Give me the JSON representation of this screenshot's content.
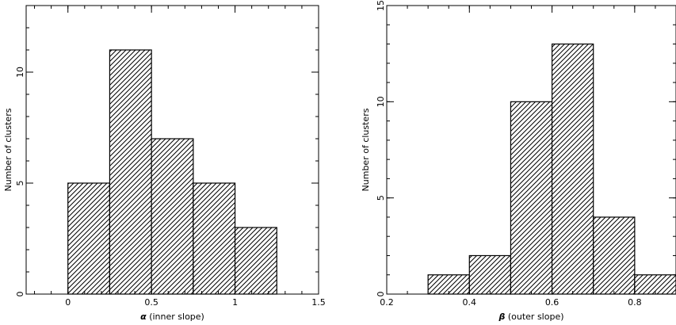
{
  "chart_data": [
    {
      "type": "bar",
      "xlabel_symbol": "α",
      "xlabel_text": " (inner slope)",
      "ylabel": "Number of clusters",
      "xlim": [
        -0.25,
        1.5
      ],
      "ylim": [
        0,
        13
      ],
      "xticks": [
        0,
        0.5,
        1,
        1.5
      ],
      "xtick_labels": [
        "0",
        "0.5",
        "1",
        "1.5"
      ],
      "x_minor_step": 0.1,
      "yticks": [
        0,
        5,
        10
      ],
      "ytick_labels": [
        "0",
        "5",
        "10"
      ],
      "y_minor_step": 1,
      "bin_width": 0.25,
      "bins": [
        {
          "x0": 0.0,
          "value": 5
        },
        {
          "x0": 0.25,
          "value": 11
        },
        {
          "x0": 0.5,
          "value": 7
        },
        {
          "x0": 0.75,
          "value": 5
        },
        {
          "x0": 1.0,
          "value": 3
        }
      ],
      "fill": "diagonal hatch"
    },
    {
      "type": "bar",
      "xlabel_symbol": "β",
      "xlabel_text": " (outer slope)",
      "ylabel": "Number of clusters",
      "xlim": [
        0.2,
        0.9
      ],
      "ylim": [
        0,
        15
      ],
      "xticks": [
        0.2,
        0.4,
        0.6,
        0.8
      ],
      "xtick_labels": [
        "0.2",
        "0.4",
        "0.6",
        "0.8"
      ],
      "x_minor_step": 0.05,
      "yticks": [
        0,
        5,
        10,
        15
      ],
      "ytick_labels": [
        "0",
        "5",
        "10",
        "15"
      ],
      "y_minor_step": 1,
      "bin_width": 0.1,
      "bins": [
        {
          "x0": 0.3,
          "value": 1
        },
        {
          "x0": 0.4,
          "value": 2
        },
        {
          "x0": 0.5,
          "value": 10
        },
        {
          "x0": 0.6,
          "value": 13
        },
        {
          "x0": 0.7,
          "value": 4
        },
        {
          "x0": 0.8,
          "value": 1
        }
      ],
      "fill": "diagonal hatch"
    }
  ]
}
